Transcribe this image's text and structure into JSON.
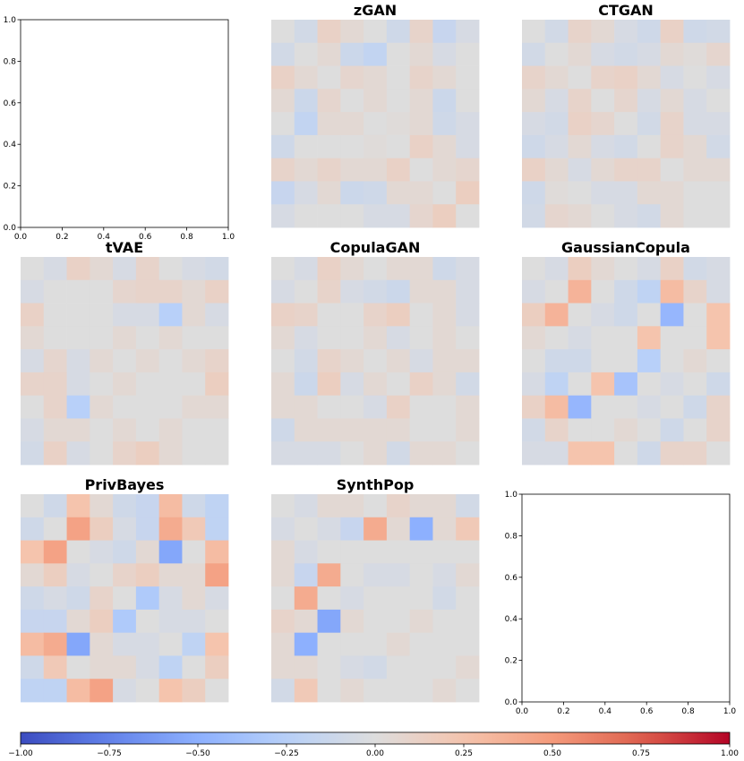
{
  "chart_data": {
    "type": "heatmap",
    "figure": "3x3 grid of correlation-difference heatmaps (9x9 each) with shared diverging colorbar",
    "colormap": "coolwarm",
    "vmin": -1.0,
    "vmax": 1.0,
    "panels": [
      {
        "title": "",
        "empty": true,
        "xlim": [
          0,
          1
        ],
        "ylim": [
          0,
          1
        ],
        "xticks": [
          "0.0",
          "0.2",
          "0.4",
          "0.6",
          "0.8",
          "1.0"
        ],
        "yticks": [
          "0.0",
          "0.2",
          "0.4",
          "0.6",
          "0.8",
          "1.0"
        ]
      },
      {
        "title": "zGAN",
        "matrix": [
          [
            0.0,
            -0.08,
            0.12,
            0.05,
            0.0,
            -0.1,
            0.1,
            -0.15,
            -0.05
          ],
          [
            -0.08,
            0.0,
            0.05,
            -0.12,
            -0.18,
            0.0,
            0.05,
            -0.05,
            0.0
          ],
          [
            0.12,
            0.05,
            0.0,
            0.08,
            0.05,
            0.0,
            0.1,
            0.05,
            0.0
          ],
          [
            0.05,
            -0.12,
            0.08,
            0.0,
            0.05,
            0.0,
            0.05,
            -0.12,
            0.0
          ],
          [
            0.0,
            -0.18,
            0.05,
            0.05,
            0.0,
            0.02,
            0.05,
            -0.1,
            -0.05
          ],
          [
            -0.1,
            0.0,
            0.0,
            0.0,
            0.02,
            0.0,
            0.12,
            0.05,
            -0.05
          ],
          [
            0.1,
            0.05,
            0.1,
            0.05,
            0.05,
            0.12,
            0.0,
            0.05,
            0.08
          ],
          [
            -0.15,
            -0.05,
            0.05,
            -0.12,
            -0.1,
            0.05,
            0.05,
            0.0,
            0.15
          ],
          [
            -0.05,
            0.0,
            0.0,
            0.0,
            -0.05,
            -0.05,
            0.08,
            0.15,
            0.0
          ]
        ]
      },
      {
        "title": "CTGAN",
        "matrix": [
          [
            0.0,
            -0.08,
            0.1,
            0.05,
            -0.05,
            -0.1,
            0.12,
            -0.1,
            -0.08
          ],
          [
            -0.08,
            0.0,
            0.05,
            -0.05,
            -0.08,
            -0.05,
            0.05,
            0.02,
            0.08
          ],
          [
            0.1,
            0.05,
            0.0,
            0.1,
            0.12,
            0.05,
            -0.05,
            0.0,
            -0.05
          ],
          [
            0.05,
            -0.05,
            0.1,
            0.0,
            0.08,
            -0.05,
            0.05,
            -0.05,
            0.0
          ],
          [
            -0.05,
            -0.08,
            0.12,
            0.08,
            0.0,
            -0.08,
            0.1,
            -0.05,
            -0.05
          ],
          [
            -0.1,
            -0.05,
            0.05,
            -0.05,
            -0.08,
            0.0,
            0.1,
            0.05,
            -0.08
          ],
          [
            0.12,
            0.05,
            -0.05,
            0.05,
            0.1,
            0.1,
            0.0,
            0.05,
            0.05
          ],
          [
            -0.1,
            0.02,
            0.0,
            -0.05,
            -0.05,
            0.05,
            0.05,
            0.0,
            0.0
          ],
          [
            -0.08,
            0.08,
            0.05,
            0.0,
            -0.05,
            -0.08,
            0.05,
            0.0,
            0.0
          ]
        ]
      },
      {
        "title": "tVAE",
        "matrix": [
          [
            0.0,
            -0.05,
            0.12,
            0.05,
            -0.05,
            0.1,
            0.0,
            -0.05,
            -0.08
          ],
          [
            -0.05,
            0.0,
            0.0,
            0.0,
            0.08,
            0.1,
            0.1,
            0.05,
            0.12
          ],
          [
            0.12,
            0.0,
            0.0,
            0.0,
            -0.05,
            -0.05,
            -0.25,
            0.05,
            -0.05
          ],
          [
            0.05,
            0.0,
            0.0,
            0.0,
            0.05,
            0.0,
            0.05,
            0.0,
            0.0
          ],
          [
            -0.05,
            0.08,
            -0.05,
            0.05,
            0.0,
            0.05,
            0.0,
            0.05,
            0.1
          ],
          [
            0.1,
            0.1,
            -0.05,
            0.0,
            0.05,
            0.0,
            0.0,
            0.0,
            0.15
          ],
          [
            0.0,
            0.1,
            -0.25,
            0.05,
            0.0,
            0.0,
            0.0,
            0.05,
            0.05
          ],
          [
            -0.05,
            0.05,
            0.05,
            0.0,
            0.05,
            0.0,
            0.05,
            0.0,
            0.0
          ],
          [
            -0.08,
            0.12,
            -0.05,
            0.0,
            0.1,
            0.15,
            0.05,
            0.0,
            0.0
          ]
        ]
      },
      {
        "title": "CopulaGAN",
        "matrix": [
          [
            0.0,
            -0.05,
            0.12,
            0.05,
            0.0,
            0.05,
            0.05,
            -0.1,
            -0.05
          ],
          [
            -0.05,
            0.0,
            0.1,
            -0.05,
            -0.08,
            -0.12,
            0.05,
            0.05,
            -0.05
          ],
          [
            0.12,
            0.1,
            0.0,
            0.0,
            0.1,
            0.15,
            0.0,
            0.05,
            -0.05
          ],
          [
            0.05,
            -0.05,
            0.0,
            0.0,
            0.05,
            -0.05,
            0.0,
            0.05,
            0.0
          ],
          [
            0.0,
            -0.08,
            0.1,
            0.05,
            0.0,
            0.05,
            -0.05,
            0.05,
            0.05
          ],
          [
            0.05,
            -0.12,
            0.15,
            -0.05,
            0.05,
            0.0,
            0.12,
            0.05,
            -0.08
          ],
          [
            0.05,
            0.05,
            0.0,
            0.0,
            -0.05,
            0.12,
            0.0,
            0.0,
            0.05
          ],
          [
            -0.1,
            0.05,
            0.05,
            0.05,
            0.05,
            0.05,
            0.0,
            0.0,
            0.05
          ],
          [
            -0.05,
            -0.05,
            -0.05,
            0.0,
            0.05,
            -0.08,
            0.05,
            0.05,
            0.0
          ]
        ]
      },
      {
        "title": "GaussianCopula",
        "matrix": [
          [
            0.0,
            -0.05,
            0.15,
            0.05,
            0.0,
            -0.05,
            0.12,
            -0.08,
            -0.05
          ],
          [
            -0.05,
            0.0,
            0.35,
            0.0,
            -0.1,
            -0.2,
            0.3,
            0.1,
            -0.05
          ],
          [
            0.15,
            0.35,
            0.0,
            -0.05,
            -0.1,
            0.0,
            -0.45,
            0.0,
            0.25
          ],
          [
            0.05,
            0.0,
            -0.05,
            0.0,
            0.0,
            0.25,
            0.0,
            0.0,
            0.25
          ],
          [
            0.0,
            -0.1,
            -0.1,
            0.0,
            0.0,
            -0.25,
            0.0,
            0.05,
            0.0
          ],
          [
            -0.05,
            -0.2,
            0.0,
            0.25,
            -0.35,
            0.0,
            -0.05,
            0.0,
            -0.1
          ],
          [
            0.12,
            0.3,
            -0.45,
            0.0,
            0.0,
            -0.05,
            0.0,
            -0.1,
            0.1
          ],
          [
            -0.08,
            0.1,
            0.0,
            0.0,
            0.05,
            0.0,
            -0.1,
            0.0,
            0.1
          ],
          [
            -0.05,
            -0.05,
            0.25,
            0.25,
            0.0,
            -0.1,
            0.1,
            0.1,
            0.0
          ]
        ]
      },
      {
        "title": "PrivBayes",
        "matrix": [
          [
            0.0,
            -0.1,
            0.25,
            0.05,
            -0.1,
            -0.15,
            0.3,
            -0.1,
            -0.2
          ],
          [
            -0.1,
            0.0,
            0.45,
            0.15,
            -0.05,
            -0.15,
            0.4,
            0.2,
            -0.2
          ],
          [
            0.25,
            0.45,
            0.0,
            -0.05,
            -0.1,
            0.05,
            -0.55,
            0.0,
            0.3
          ],
          [
            0.05,
            0.15,
            -0.05,
            0.0,
            0.1,
            0.15,
            0.05,
            0.05,
            0.45
          ],
          [
            -0.1,
            -0.05,
            -0.1,
            0.1,
            0.0,
            -0.3,
            -0.05,
            0.05,
            -0.05
          ],
          [
            -0.15,
            -0.15,
            0.05,
            0.15,
            -0.3,
            0.0,
            -0.05,
            -0.05,
            0.0
          ],
          [
            0.3,
            0.4,
            -0.55,
            0.05,
            -0.05,
            -0.05,
            0.0,
            -0.2,
            0.25
          ],
          [
            -0.1,
            0.2,
            0.0,
            0.05,
            0.05,
            -0.05,
            -0.2,
            0.0,
            0.15
          ],
          [
            -0.2,
            -0.2,
            0.3,
            0.45,
            -0.05,
            0.0,
            0.25,
            0.15,
            0.0
          ]
        ]
      },
      {
        "title": "SynthPop",
        "matrix": [
          [
            0.0,
            -0.05,
            0.05,
            0.05,
            0.0,
            0.1,
            0.05,
            0.05,
            -0.08
          ],
          [
            -0.05,
            0.0,
            -0.05,
            -0.15,
            0.4,
            0.05,
            -0.5,
            0.05,
            0.2
          ],
          [
            0.05,
            -0.05,
            0.0,
            0.0,
            0.0,
            0.0,
            0.0,
            0.0,
            0.0
          ],
          [
            0.05,
            -0.15,
            0.4,
            0.0,
            -0.05,
            -0.05,
            0.0,
            -0.05,
            0.05
          ],
          [
            0.0,
            0.4,
            0.0,
            -0.05,
            0.0,
            0.0,
            0.0,
            -0.08,
            0.0
          ],
          [
            0.1,
            0.05,
            -0.55,
            0.05,
            0.0,
            0.0,
            0.05,
            0.0,
            0.0
          ],
          [
            0.05,
            -0.5,
            0.0,
            0.0,
            0.0,
            0.05,
            0.0,
            0.0,
            0.0
          ],
          [
            0.05,
            0.05,
            0.0,
            -0.05,
            -0.08,
            0.0,
            0.0,
            0.0,
            0.05
          ],
          [
            -0.08,
            0.2,
            0.0,
            0.05,
            0.0,
            0.0,
            0.0,
            0.05,
            0.0
          ]
        ]
      },
      {
        "title": "",
        "empty": true,
        "xlim": [
          0,
          1
        ],
        "ylim": [
          0,
          1
        ],
        "xticks": [
          "0.0",
          "0.2",
          "0.4",
          "0.6",
          "0.8",
          "1.0"
        ],
        "yticks": [
          "0.0",
          "0.2",
          "0.4",
          "0.6",
          "0.8",
          "1.0"
        ]
      }
    ],
    "colorbar": {
      "ticks": [
        "−1.00",
        "−0.75",
        "−0.50",
        "−0.25",
        "0.00",
        "0.25",
        "0.50",
        "0.75",
        "1.00"
      ],
      "tick_values": [
        -1.0,
        -0.75,
        -0.5,
        -0.25,
        0.0,
        0.25,
        0.5,
        0.75,
        1.0
      ]
    }
  }
}
